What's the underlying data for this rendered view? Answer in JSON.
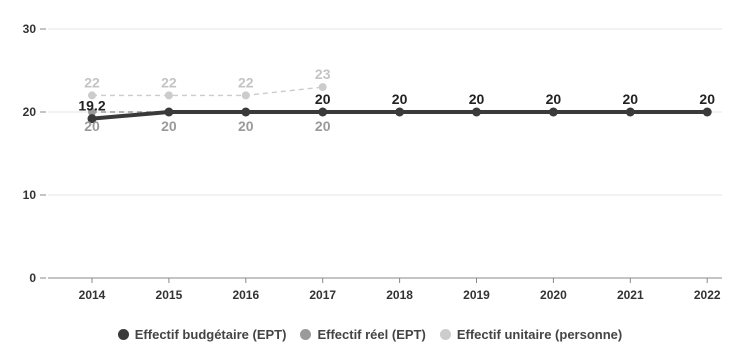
{
  "chart_data": {
    "type": "line",
    "categories": [
      "2014",
      "2015",
      "2016",
      "2017",
      "2018",
      "2019",
      "2020",
      "2021",
      "2022"
    ],
    "ylim": [
      0,
      30
    ],
    "y_ticks": [
      0,
      10,
      20,
      30
    ],
    "y_tick_labels": [
      "0",
      "10",
      "20",
      "30"
    ],
    "grid": true,
    "legend_position": "bottom",
    "series": [
      {
        "name": "Effectif budgétaire (EPT)",
        "values": [
          19.2,
          20,
          20,
          20,
          20,
          20,
          20,
          20,
          20
        ],
        "labels": [
          "19.2",
          "",
          "",
          "20",
          "20",
          "20",
          "20",
          "20",
          "20"
        ],
        "color": "#3a3a3a",
        "style": "solid"
      },
      {
        "name": "Effectif réel (EPT)",
        "values": [
          20,
          20,
          20,
          20,
          null,
          null,
          null,
          null,
          null
        ],
        "labels": [
          "20",
          "20",
          "20",
          "20",
          "",
          "",
          "",
          "",
          ""
        ],
        "color": "#9a9a9a",
        "style": "dashed"
      },
      {
        "name": "Effectif unitaire (personne)",
        "values": [
          22,
          22,
          22,
          23,
          null,
          null,
          null,
          null,
          null
        ],
        "labels": [
          "22",
          "22",
          "22",
          "23",
          "",
          "",
          "",
          "",
          ""
        ],
        "color": "#cccccc",
        "style": "dashed"
      }
    ]
  }
}
